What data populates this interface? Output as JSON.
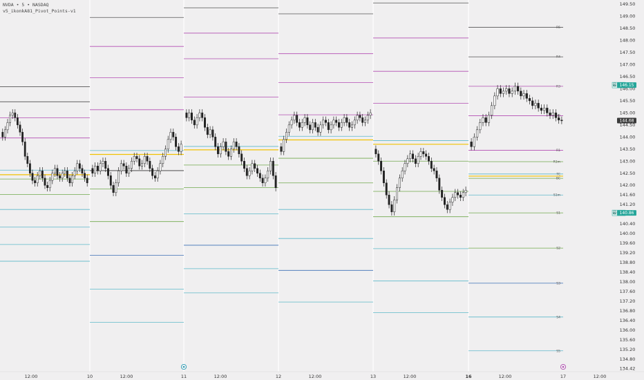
{
  "header": {
    "line1": "NVDA • 5 • NASDAQ",
    "line2": "v5_ikonkA81_Pivot_Points-v1"
  },
  "chart_data": {
    "type": "candlestick",
    "symbol": "NVDA",
    "interval": "5",
    "exchange": "NASDAQ",
    "indicator": "v5_ikonkA81_Pivot_Points-v1",
    "ylim": [
      134.42,
      149.5
    ],
    "y_ticks": [
      "149.50",
      "149.00",
      "148.50",
      "148.00",
      "147.50",
      "147.00",
      "146.50",
      "146.00",
      "145.50",
      "145.00",
      "144.50",
      "144.00",
      "143.50",
      "143.00",
      "142.50",
      "142.00",
      "141.60",
      "141.20",
      "140.80",
      "140.40",
      "140.00",
      "139.60",
      "139.20",
      "138.80",
      "138.40",
      "138.00",
      "137.60",
      "137.20",
      "136.80",
      "136.40",
      "136.00",
      "135.60",
      "135.20",
      "134.80",
      "134.42"
    ],
    "x_ticks": [
      {
        "label": "12:00",
        "bold": false
      },
      {
        "label": "10",
        "bold": false
      },
      {
        "label": "12:00",
        "bold": false
      },
      {
        "label": "11",
        "bold": false
      },
      {
        "label": "12:00",
        "bold": false
      },
      {
        "label": "12",
        "bold": false
      },
      {
        "label": "12:00",
        "bold": false
      },
      {
        "label": "13",
        "bold": false
      },
      {
        "label": "12:00",
        "bold": false
      },
      {
        "label": "16",
        "bold": true
      },
      {
        "label": "12:00",
        "bold": false
      },
      {
        "label": "17",
        "bold": false
      },
      {
        "label": "12:00",
        "bold": false
      }
    ],
    "price_tags": [
      {
        "label": "最高价",
        "value": "146.15",
        "color": "#26a69a"
      },
      {
        "label": "",
        "value": "144.68",
        "color": "#3b3b3b"
      },
      {
        "label": "最低价",
        "value": "140.86",
        "color": "#26a69a"
      }
    ],
    "days": [
      {
        "pivots": [
          {
            "v": 146.08,
            "c": "#555555"
          },
          {
            "v": 145.46,
            "c": "#333333"
          },
          {
            "v": 144.8,
            "c": "#b24cb2"
          },
          {
            "v": 143.96,
            "c": "#b24cb2"
          },
          {
            "v": 142.63,
            "c": "#5bb8c9"
          },
          {
            "v": 142.44,
            "c": "#f2c200"
          },
          {
            "v": 142.26,
            "c": "#6fa84b"
          },
          {
            "v": 141.62,
            "c": "#6fa84b"
          },
          {
            "v": 141.0,
            "c": "#5bb8c9"
          },
          {
            "v": 140.27,
            "c": "#5bb8c9"
          },
          {
            "v": 139.55,
            "c": "#5bb8c9"
          },
          {
            "v": 138.86,
            "c": "#5bb8c9"
          }
        ],
        "candles_close": [
          144.0,
          144.3,
          144.6,
          144.9,
          145.0,
          144.8,
          144.5,
          144.2,
          143.8,
          143.2,
          142.9,
          142.5,
          142.2,
          142.1,
          142.4,
          142.6,
          142.3,
          142.0,
          141.9,
          142.2,
          142.5,
          142.7,
          142.4,
          142.3,
          142.5,
          142.6,
          142.3,
          142.1,
          142.4,
          142.6,
          142.9,
          142.7,
          142.5,
          142.3,
          142.1
        ]
      },
      {
        "pivots": [
          {
            "v": 148.95,
            "c": "#555555"
          },
          {
            "v": 147.75,
            "c": "#b24cb2"
          },
          {
            "v": 146.45,
            "c": "#b24cb2"
          },
          {
            "v": 145.13,
            "c": "#b24cb2"
          },
          {
            "v": 143.44,
            "c": "#5bb8c9"
          },
          {
            "v": 143.28,
            "c": "#f2c200"
          },
          {
            "v": 142.61,
            "c": "#333333"
          },
          {
            "v": 141.85,
            "c": "#6fa84b"
          },
          {
            "v": 140.5,
            "c": "#6fa84b"
          },
          {
            "v": 139.1,
            "c": "#3a6fb5"
          },
          {
            "v": 137.7,
            "c": "#5bb8c9"
          },
          {
            "v": 136.33,
            "c": "#5bb8c9"
          }
        ],
        "candles_close": [
          142.5,
          142.8,
          142.6,
          142.9,
          143.0,
          142.7,
          142.4,
          142.0,
          141.7,
          142.1,
          142.6,
          142.9,
          142.8,
          142.5,
          142.7,
          143.0,
          143.2,
          143.1,
          142.8,
          142.9,
          143.2,
          143.0,
          142.7,
          142.4,
          142.3,
          142.6,
          142.9,
          143.2,
          143.5,
          143.9,
          144.2,
          144.0,
          143.6,
          143.4,
          143.7
        ]
      },
      {
        "pivots": [
          {
            "v": 149.35,
            "c": "#555555"
          },
          {
            "v": 148.3,
            "c": "#b24cb2"
          },
          {
            "v": 147.24,
            "c": "#b24cb2"
          },
          {
            "v": 145.65,
            "c": "#b24cb2"
          },
          {
            "v": 143.61,
            "c": "#5bb8c9"
          },
          {
            "v": 143.47,
            "c": "#f2c200"
          },
          {
            "v": 142.84,
            "c": "#6fa84b"
          },
          {
            "v": 141.91,
            "c": "#6fa84b"
          },
          {
            "v": 140.82,
            "c": "#5bb8c9"
          },
          {
            "v": 139.52,
            "c": "#3a6fb5"
          },
          {
            "v": 138.55,
            "c": "#5bb8c9"
          },
          {
            "v": 137.55,
            "c": "#5bb8c9"
          }
        ],
        "candles_close": [
          144.8,
          145.0,
          144.7,
          144.5,
          144.8,
          145.0,
          144.8,
          144.4,
          144.1,
          144.3,
          144.0,
          143.6,
          143.3,
          143.6,
          143.8,
          143.4,
          143.2,
          143.5,
          143.8,
          143.6,
          143.3,
          143.0,
          142.7,
          142.4,
          142.6,
          142.9,
          142.7,
          142.5,
          142.3,
          142.1,
          142.3,
          142.6,
          143.0,
          142.4,
          141.9
        ]
      },
      {
        "pivots": [
          {
            "v": 149.1,
            "c": "#555555"
          },
          {
            "v": 147.45,
            "c": "#b24cb2"
          },
          {
            "v": 146.25,
            "c": "#b24cb2"
          },
          {
            "v": 144.92,
            "c": "#b24cb2"
          },
          {
            "v": 144.03,
            "c": "#5bb8c9"
          },
          {
            "v": 143.88,
            "c": "#f2c200"
          },
          {
            "v": 143.12,
            "c": "#6fa84b"
          },
          {
            "v": 142.1,
            "c": "#6fa84b"
          },
          {
            "v": 141.0,
            "c": "#5bb8c9"
          },
          {
            "v": 139.8,
            "c": "#5bb8c9"
          },
          {
            "v": 138.48,
            "c": "#3a6fb5"
          },
          {
            "v": 137.17,
            "c": "#5bb8c9"
          }
        ],
        "candles_close": [
          143.4,
          143.9,
          144.2,
          144.5,
          144.7,
          144.9,
          144.6,
          144.4,
          144.6,
          144.8,
          144.5,
          144.3,
          144.6,
          144.4,
          144.2,
          144.5,
          144.7,
          144.6,
          144.3,
          144.5,
          144.7,
          144.6,
          144.4,
          144.6,
          144.8,
          144.6,
          144.4,
          144.5,
          144.7,
          144.9,
          144.8,
          144.6,
          144.7,
          144.9,
          145.0
        ]
      },
      {
        "pivots": [
          {
            "v": 149.55,
            "c": "#555555"
          },
          {
            "v": 148.1,
            "c": "#b24cb2"
          },
          {
            "v": 146.72,
            "c": "#b24cb2"
          },
          {
            "v": 145.4,
            "c": "#b24cb2"
          },
          {
            "v": 143.85,
            "c": "#5bb8c9"
          },
          {
            "v": 143.7,
            "c": "#f2c200"
          },
          {
            "v": 143.0,
            "c": "#6fa84b"
          },
          {
            "v": 141.75,
            "c": "#6fa84b"
          },
          {
            "v": 140.7,
            "c": "#6fa84b"
          },
          {
            "v": 139.38,
            "c": "#5bb8c9"
          },
          {
            "v": 138.04,
            "c": "#5bb8c9"
          },
          {
            "v": 136.73,
            "c": "#5bb8c9"
          }
        ],
        "candles_close": [
          143.3,
          143.0,
          142.6,
          142.1,
          141.6,
          141.2,
          140.9,
          141.4,
          141.9,
          142.3,
          142.6,
          142.9,
          143.1,
          143.3,
          143.1,
          142.9,
          143.2,
          143.4,
          143.3,
          143.2,
          143.0,
          142.7,
          142.6,
          142.3,
          141.8,
          141.5,
          141.2,
          141.0,
          141.3,
          141.5,
          141.7,
          141.6,
          141.5,
          141.7,
          141.8
        ]
      },
      {
        "pivots": [
          {
            "v": 148.54,
            "c": "#555555",
            "label": "R5"
          },
          {
            "v": 147.32,
            "c": "#555555",
            "label": "R4"
          },
          {
            "v": 146.1,
            "c": "#b24cb2",
            "label": "R3"
          },
          {
            "v": 144.88,
            "c": "#b24cb2",
            "label": "R2"
          },
          {
            "v": 143.45,
            "c": "#b24cb2",
            "label": "R1"
          },
          {
            "v": 142.98,
            "c": "#6fa84b",
            "label": "R1m"
          },
          {
            "v": 142.47,
            "c": "#5bb8c9",
            "label": "TC"
          },
          {
            "v": 142.38,
            "c": "#f2c200",
            "label": ""
          },
          {
            "v": 142.29,
            "c": "#6fa84b",
            "label": "BC"
          },
          {
            "v": 141.6,
            "c": "#5bb8c9",
            "label": "S1m"
          },
          {
            "v": 140.86,
            "c": "#6fa84b",
            "label": "S1"
          },
          {
            "v": 139.4,
            "c": "#6fa84b",
            "label": "S2"
          },
          {
            "v": 137.95,
            "c": "#3a6fb5",
            "label": "S3"
          },
          {
            "v": 136.55,
            "c": "#5bb8c9",
            "label": "S4"
          },
          {
            "v": 135.15,
            "c": "#5bb8c9",
            "label": "S5"
          }
        ],
        "candles_close": [
          143.6,
          144.0,
          144.3,
          144.6,
          144.8,
          144.6,
          144.9,
          145.3,
          145.7,
          146.0,
          145.8,
          145.9,
          146.0,
          145.8,
          145.9,
          146.1,
          145.9,
          145.7,
          145.8,
          145.6,
          145.5,
          145.3,
          145.4,
          145.2,
          145.1,
          145.2,
          145.0,
          144.9,
          145.0,
          144.8,
          144.7,
          144.68
        ]
      }
    ]
  }
}
